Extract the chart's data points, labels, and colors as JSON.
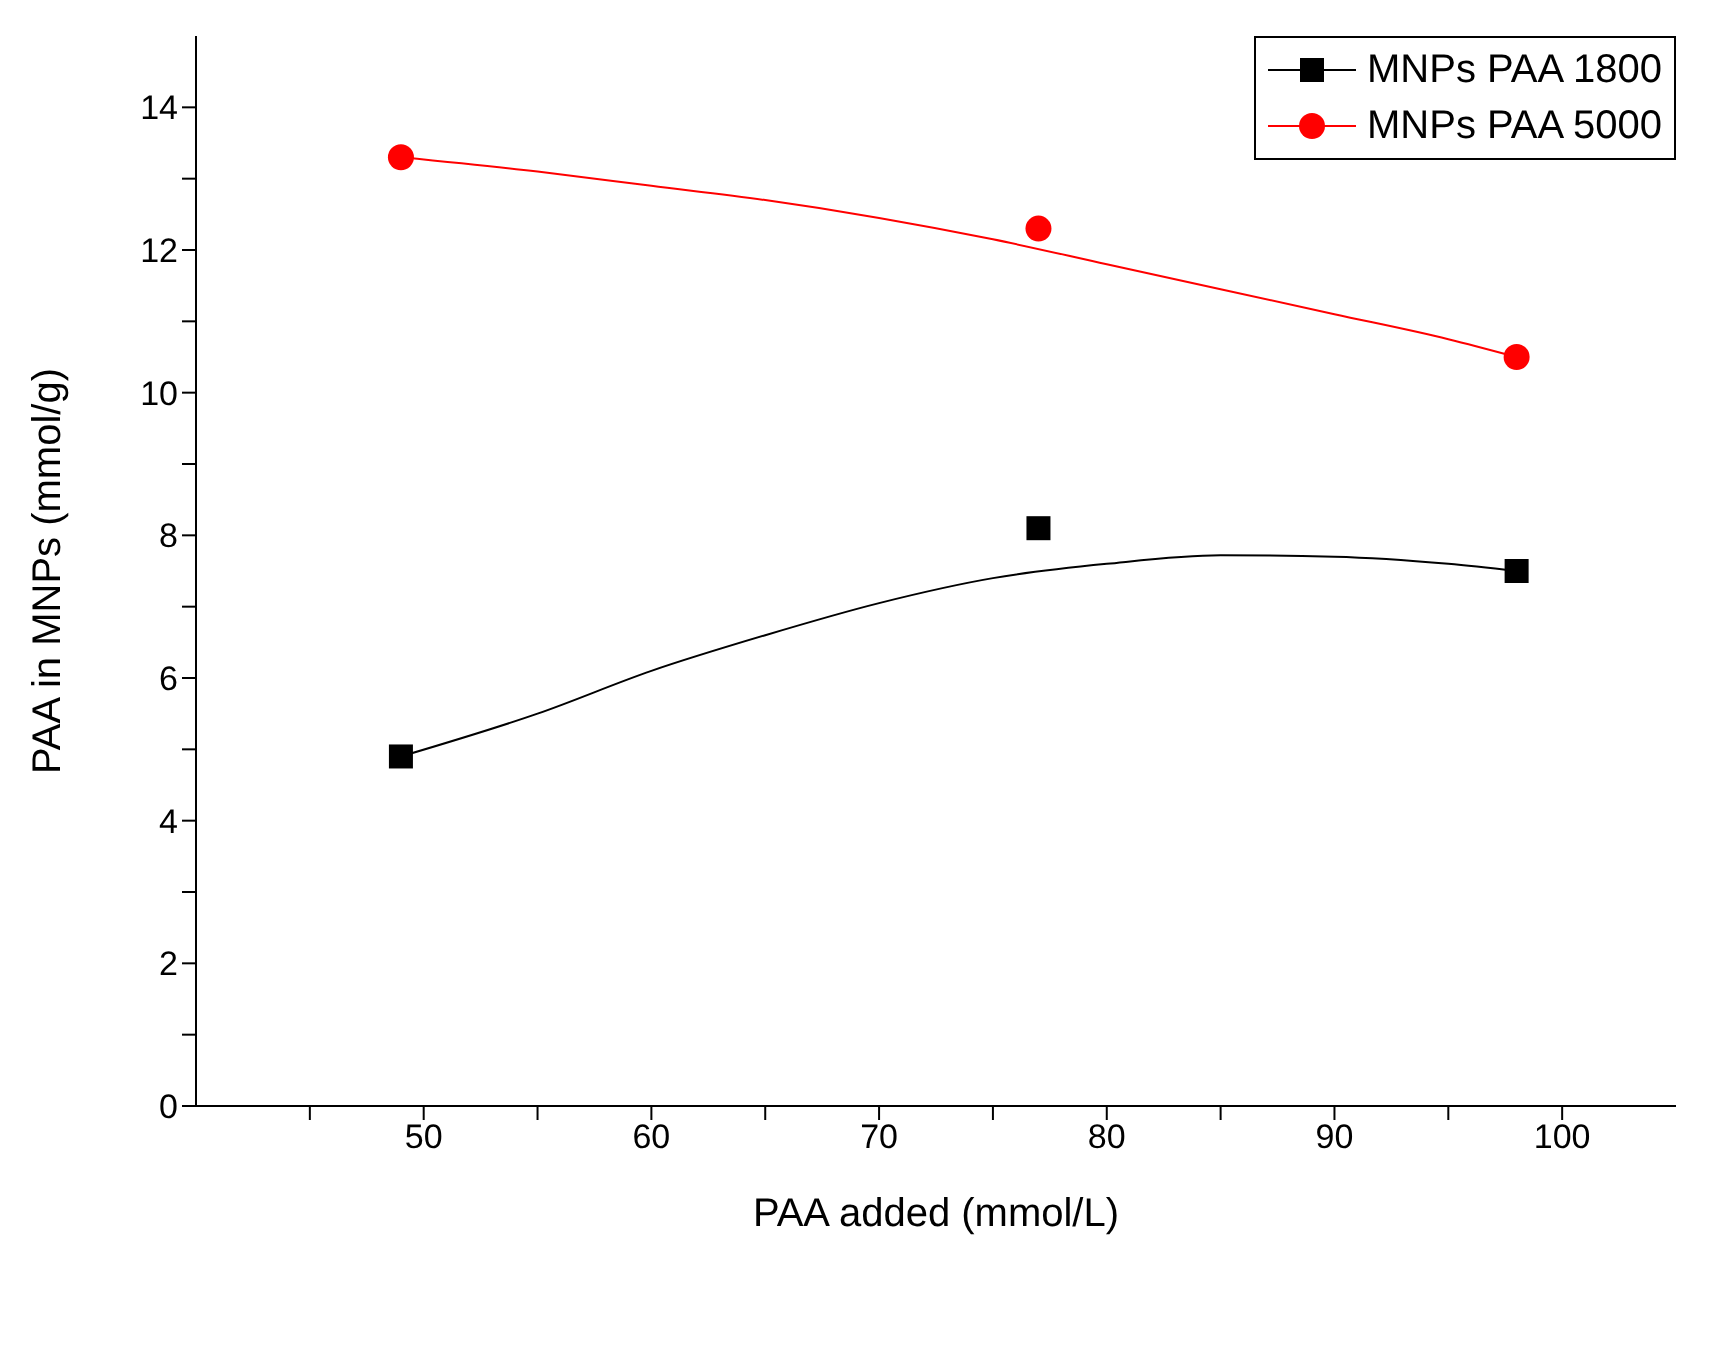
{
  "chart_data": {
    "type": "scatter",
    "xlabel": "PAA added (mmol/L)",
    "ylabel": "PAA in MNPs (mmol/g)",
    "xlim": [
      40,
      105
    ],
    "ylim": [
      0,
      15
    ],
    "xticks": [
      {
        "value": 45,
        "label": null
      },
      50,
      {
        "value": 55,
        "label": null
      },
      60,
      {
        "value": 65,
        "label": null
      },
      70,
      {
        "value": 75,
        "label": null
      },
      80,
      {
        "value": 85,
        "label": null
      },
      90,
      {
        "value": 95,
        "label": null
      },
      100
    ],
    "yticks": [
      0,
      {
        "value": 1,
        "label": null
      },
      2,
      {
        "value": 3,
        "label": null
      },
      4,
      {
        "value": 5,
        "label": null
      },
      6,
      {
        "value": 7,
        "label": null
      },
      8,
      {
        "value": 9,
        "label": null
      },
      10,
      {
        "value": 11,
        "label": null
      },
      12,
      {
        "value": 13,
        "label": null
      },
      14
    ],
    "grid": false,
    "legend": "top right",
    "series": [
      {
        "name": "MNPs PAA 1800",
        "marker": "square",
        "color": "#000000",
        "x": [
          49,
          77,
          98
        ],
        "values": [
          4.9,
          8.1,
          7.5
        ]
      },
      {
        "name": "MNPs PAA 5000",
        "marker": "circle",
        "color": "#ff0000",
        "x": [
          49,
          77,
          98
        ],
        "values": [
          13.3,
          12.3,
          10.5
        ]
      },
      {
        "type": "line",
        "color": "#000000",
        "x": [
          49,
          55,
          60,
          65,
          70,
          75,
          80,
          85,
          90,
          95,
          98
        ],
        "values": [
          4.9,
          5.5,
          6.1,
          6.6,
          7.05,
          7.4,
          7.6,
          7.72,
          7.7,
          7.6,
          7.5
        ]
      },
      {
        "type": "line",
        "color": "#ff0000",
        "x": [
          49,
          55,
          60,
          65,
          70,
          75,
          80,
          85,
          90,
          95,
          98
        ],
        "values": [
          13.3,
          13.1,
          12.9,
          12.7,
          12.45,
          12.15,
          11.8,
          11.45,
          11.1,
          10.75,
          10.5
        ]
      }
    ]
  }
}
